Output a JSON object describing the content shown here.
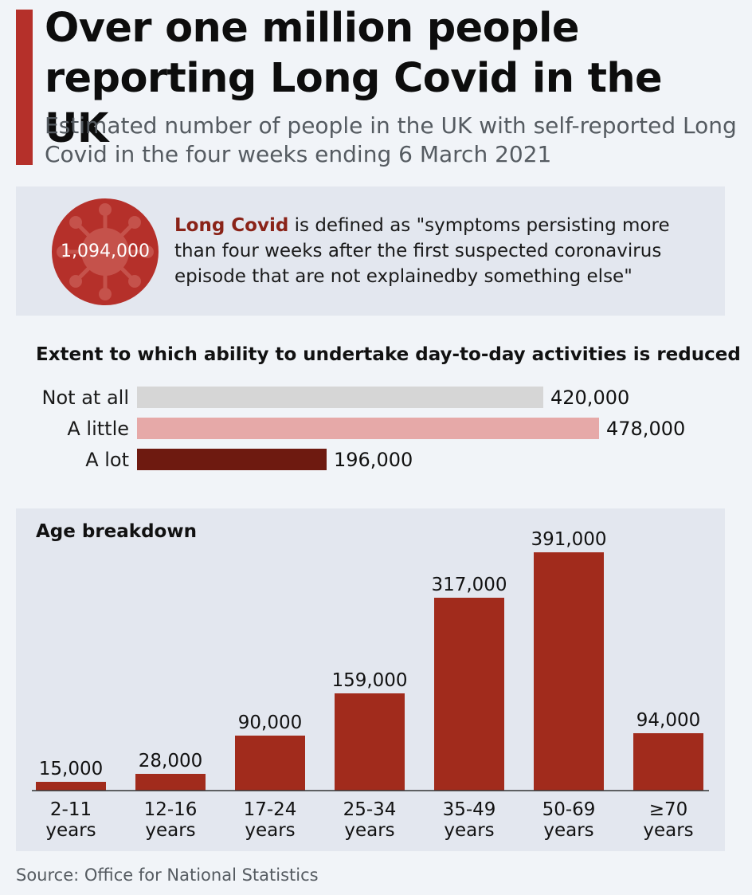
{
  "header": {
    "title": "Over one million people reporting Long Covid in the UK",
    "subtitle": "Estimated number of people in the UK with self-reported Long Covid in the four weeks ending 6 March 2021"
  },
  "definition": {
    "total": "1,094,000",
    "term": "Long Covid",
    "text": " is defined as \"symptoms persisting more than four weeks after the first suspected coronavirus episode that are not explainedby something else\""
  },
  "source": "Source: Office for National Statistics",
  "colors": {
    "accent": "#b5302a",
    "bar_not_at_all": "#d6d6d6",
    "bar_a_little": "#e6a9a8",
    "bar_a_lot": "#6e1a10",
    "age_bars": "#a12b1c"
  },
  "chart_data": [
    {
      "type": "bar",
      "orientation": "horizontal",
      "title": "Extent to which ability to undertake day-to-day activities is reduced",
      "categories": [
        "Not at all",
        "A little",
        "A lot"
      ],
      "values": [
        420000,
        478000,
        196000
      ],
      "value_labels": [
        "420,000",
        "478,000",
        "196,000"
      ],
      "xlim": [
        0,
        478000
      ],
      "grid": false,
      "legend": "none"
    },
    {
      "type": "bar",
      "orientation": "vertical",
      "title": "Age breakdown",
      "categories": [
        [
          "2-11",
          "years"
        ],
        [
          "12-16",
          "years"
        ],
        [
          "17-24",
          "years"
        ],
        [
          "25-34",
          "years"
        ],
        [
          "35-49",
          "years"
        ],
        [
          "50-69",
          "years"
        ],
        [
          "≥70",
          "years"
        ]
      ],
      "values": [
        15000,
        28000,
        90000,
        159000,
        317000,
        391000,
        94000
      ],
      "value_labels": [
        "15,000",
        "28,000",
        "90,000",
        "159,000",
        "317,000",
        "391,000",
        "94,000"
      ],
      "ylim": [
        0,
        391000
      ],
      "grid": false,
      "legend": "none"
    }
  ]
}
